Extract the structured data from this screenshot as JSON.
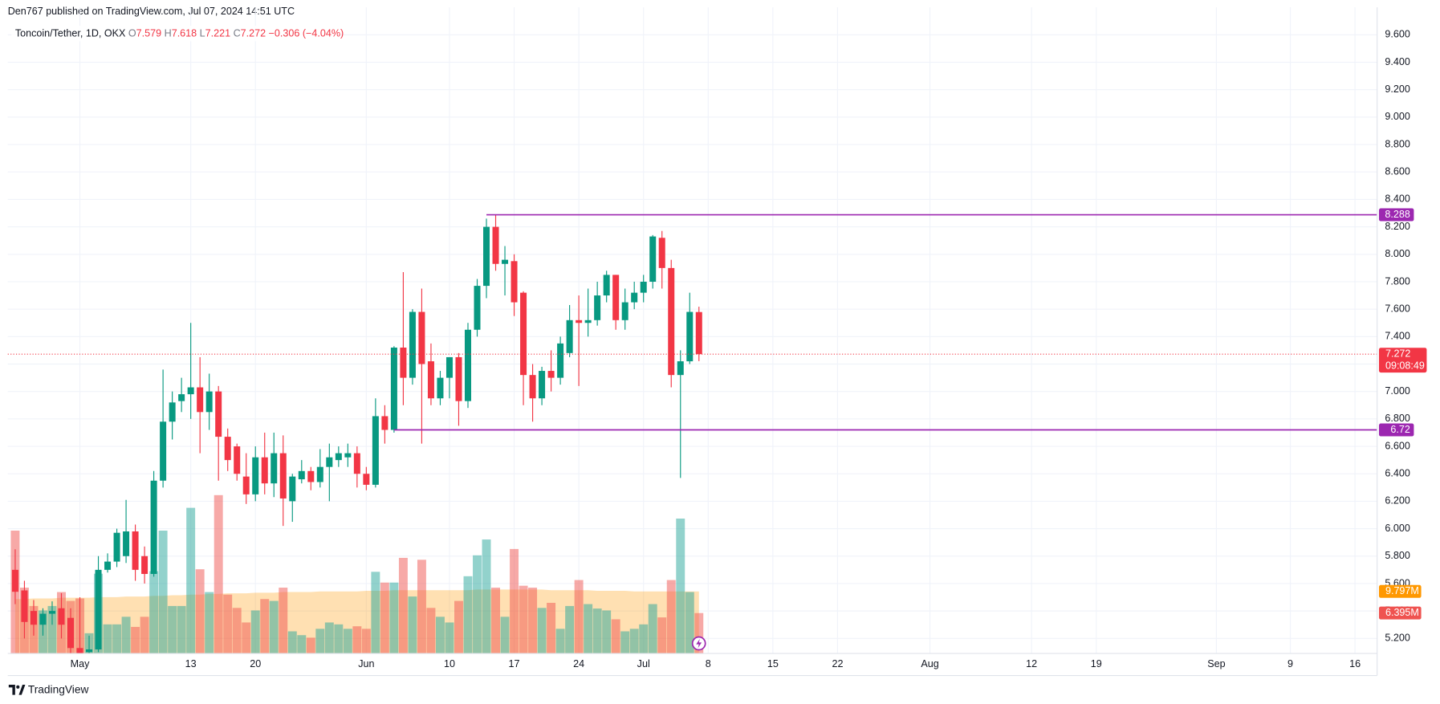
{
  "header": {
    "published": "Den767 published on TradingView.com, Jul 07, 2024 14:51 UTC"
  },
  "chart_data": {
    "type": "candlestick",
    "symbol": "Toncoin/Tether, 1D, OKX",
    "ohlc_labels": [
      "O",
      "H",
      "L",
      "C"
    ],
    "change": "−0.306 (−4.04%)",
    "countdown": "09:08:49",
    "colors": {
      "up": "#089981",
      "down": "#f23645",
      "up_volume": "#26a69a",
      "down_volume": "#ef5350",
      "level": "#9c27b0",
      "volume_ma": "#ff9800",
      "ma_label": "#ff9800",
      "grid": "#f0f3fa"
    },
    "grid": true,
    "x": [
      "2024-04-24",
      "2024-04-25",
      "2024-04-26",
      "2024-04-27",
      "2024-04-28",
      "2024-04-29",
      "2024-04-30",
      "2024-05-01",
      "2024-05-02",
      "2024-05-03",
      "2024-05-04",
      "2024-05-05",
      "2024-05-06",
      "2024-05-07",
      "2024-05-08",
      "2024-05-09",
      "2024-05-10",
      "2024-05-11",
      "2024-05-12",
      "2024-05-13",
      "2024-05-14",
      "2024-05-15",
      "2024-05-16",
      "2024-05-17",
      "2024-05-18",
      "2024-05-19",
      "2024-05-20",
      "2024-05-21",
      "2024-05-22",
      "2024-05-23",
      "2024-05-24",
      "2024-05-25",
      "2024-05-26",
      "2024-05-27",
      "2024-05-28",
      "2024-05-29",
      "2024-05-30",
      "2024-05-31",
      "2024-06-01",
      "2024-06-02",
      "2024-06-03",
      "2024-06-04",
      "2024-06-05",
      "2024-06-06",
      "2024-06-07",
      "2024-06-08",
      "2024-06-09",
      "2024-06-10",
      "2024-06-11",
      "2024-06-12",
      "2024-06-13",
      "2024-06-14",
      "2024-06-15",
      "2024-06-16",
      "2024-06-17",
      "2024-06-18",
      "2024-06-19",
      "2024-06-20",
      "2024-06-21",
      "2024-06-22",
      "2024-06-23",
      "2024-06-24",
      "2024-06-25",
      "2024-06-26",
      "2024-06-27",
      "2024-06-28",
      "2024-06-29",
      "2024-06-30",
      "2024-07-01",
      "2024-07-02",
      "2024-07-03",
      "2024-07-04",
      "2024-07-05",
      "2024-07-06",
      "2024-07-07"
    ],
    "open": [
      5.7,
      5.55,
      5.4,
      5.3,
      5.38,
      5.42,
      5.35,
      5.13,
      5.1,
      5.12,
      5.7,
      5.76,
      5.8,
      5.98,
      5.8,
      5.67,
      6.35,
      6.78,
      6.93,
      6.98,
      7.03,
      6.85,
      7.0,
      6.67,
      6.6,
      6.38,
      6.25,
      6.52,
      6.33,
      6.55,
      6.2,
      6.36,
      6.42,
      6.34,
      6.45,
      6.5,
      6.52,
      6.55,
      6.4,
      6.32,
      6.82,
      6.72,
      7.32,
      7.1,
      7.58,
      7.22,
      6.95,
      7.1,
      7.25,
      6.93,
      7.45,
      7.77,
      8.2,
      7.93,
      7.95,
      7.72,
      7.12,
      6.95,
      7.15,
      7.1,
      7.28,
      7.52,
      7.5,
      7.52,
      7.7,
      7.85,
      7.52,
      7.65,
      7.72,
      7.8,
      8.12,
      7.9,
      7.12,
      7.22,
      7.579
    ],
    "high": [
      5.85,
      5.62,
      5.48,
      5.42,
      5.47,
      5.53,
      5.42,
      5.5,
      5.22,
      5.8,
      5.82,
      6.0,
      6.21,
      6.03,
      5.87,
      6.42,
      7.16,
      7.0,
      7.1,
      7.5,
      7.25,
      7.13,
      7.04,
      6.73,
      6.62,
      6.55,
      6.6,
      6.7,
      6.7,
      6.68,
      6.4,
      6.5,
      6.45,
      6.58,
      6.62,
      6.6,
      6.62,
      6.6,
      6.45,
      6.95,
      6.9,
      7.33,
      7.87,
      7.6,
      7.75,
      7.35,
      7.15,
      7.25,
      7.28,
      7.5,
      7.82,
      8.26,
      8.29,
      8.06,
      8.0,
      7.73,
      7.2,
      7.18,
      7.3,
      7.4,
      7.63,
      7.7,
      7.75,
      7.8,
      7.88,
      7.85,
      7.75,
      7.8,
      7.85,
      8.14,
      8.17,
      7.96,
      7.3,
      7.72,
      7.618
    ],
    "low": [
      5.45,
      5.2,
      5.22,
      5.22,
      5.3,
      5.2,
      5.08,
      5.02,
      5.06,
      5.1,
      5.68,
      5.72,
      5.75,
      5.62,
      5.6,
      5.65,
      6.3,
      6.65,
      6.85,
      6.8,
      6.55,
      6.72,
      6.35,
      6.42,
      6.35,
      6.18,
      6.2,
      6.25,
      6.23,
      6.02,
      6.05,
      6.33,
      6.28,
      6.3,
      6.2,
      6.45,
      6.45,
      6.3,
      6.28,
      6.3,
      6.62,
      6.7,
      6.9,
      7.05,
      6.62,
      6.9,
      6.9,
      6.95,
      6.75,
      6.88,
      7.4,
      7.68,
      7.88,
      7.7,
      7.55,
      6.9,
      6.78,
      6.9,
      7.0,
      7.05,
      7.25,
      7.04,
      7.4,
      7.48,
      7.65,
      7.45,
      7.45,
      7.6,
      7.65,
      7.75,
      7.75,
      7.03,
      6.37,
      7.2,
      7.221
    ],
    "close": [
      5.54,
      5.32,
      5.3,
      5.38,
      5.4,
      5.3,
      5.13,
      5.05,
      5.12,
      5.7,
      5.76,
      5.97,
      5.98,
      5.7,
      5.67,
      6.35,
      6.78,
      6.92,
      6.98,
      7.03,
      6.85,
      7.0,
      6.67,
      6.5,
      6.4,
      6.25,
      6.52,
      6.33,
      6.55,
      6.22,
      6.38,
      6.42,
      6.34,
      6.45,
      6.52,
      6.55,
      6.55,
      6.4,
      6.32,
      6.82,
      6.72,
      7.32,
      7.1,
      7.58,
      7.2,
      6.95,
      7.1,
      7.25,
      6.93,
      7.45,
      7.77,
      8.2,
      7.93,
      7.96,
      7.65,
      7.12,
      6.95,
      7.15,
      7.1,
      7.35,
      7.52,
      7.5,
      7.52,
      7.7,
      7.85,
      7.52,
      7.65,
      7.72,
      7.8,
      8.13,
      7.9,
      7.12,
      7.22,
      7.58,
      7.272
    ],
    "volume": [
      19.4,
      10.4,
      7.5,
      6.8,
      7.5,
      9.7,
      8.3,
      8.7,
      3.2,
      12.6,
      4.6,
      4.6,
      5.8,
      4.2,
      5.8,
      13,
      19.4,
      7.5,
      7.5,
      23,
      13.3,
      9.7,
      25,
      9.3,
      7.2,
      4.9,
      6.8,
      8.6,
      8.3,
      10.4,
      3.5,
      2.9,
      2.5,
      3.9,
      4.9,
      4.6,
      3.9,
      4.3,
      3.9,
      12.9,
      11.2,
      11.2,
      15.1,
      9,
      14.8,
      7.2,
      5.8,
      4.9,
      8.3,
      12.2,
      15.5,
      18,
      10.4,
      5.8,
      16.5,
      10.7,
      10.4,
      7.2,
      8,
      3.9,
      7.5,
      11.6,
      7.8,
      7.1,
      6.8,
      5.4,
      3.5,
      3.9,
      4.6,
      7.8,
      5.7,
      11.6,
      21.3,
      9.7,
      6.395
    ],
    "volume_ma": [
      8.6,
      8.6,
      8.7,
      8.7,
      8.7,
      8.8,
      8.8,
      8.8,
      8.8,
      8.9,
      8.9,
      8.9,
      9.0,
      9.0,
      9.0,
      9.1,
      9.1,
      9.2,
      9.2,
      9.3,
      9.3,
      9.4,
      9.4,
      9.5,
      9.5,
      9.5,
      9.6,
      9.6,
      9.6,
      9.7,
      9.7,
      9.7,
      9.7,
      9.8,
      9.8,
      9.8,
      9.8,
      9.8,
      9.9,
      9.9,
      9.9,
      10.0,
      10.0,
      10.0,
      10.0,
      10.0,
      10.0,
      10.0,
      10.0,
      10.0,
      10.1,
      10.1,
      10.1,
      10.1,
      10.1,
      10.1,
      10.1,
      10.1,
      10.0,
      10.0,
      10.0,
      10.0,
      10.0,
      9.9,
      9.9,
      9.9,
      9.9,
      9.8,
      9.8,
      9.8,
      9.8,
      9.8,
      9.8,
      9.8,
      9.797
    ],
    "volume_labels": [
      {
        "value": 9.797,
        "label": "9.797M"
      },
      {
        "value": 6.395,
        "label": "6.395M"
      }
    ],
    "volume_ylim": [
      0,
      102
    ],
    "xlim": [
      "2024-04-23",
      "2024-09-18"
    ],
    "xticks": [
      {
        "value": "2024-05-01",
        "label": "May"
      },
      {
        "value": "2024-05-13",
        "label": "13"
      },
      {
        "value": "2024-05-20",
        "label": "20"
      },
      {
        "value": "2024-06-01",
        "label": "Jun"
      },
      {
        "value": "2024-06-10",
        "label": "10"
      },
      {
        "value": "2024-06-17",
        "label": "17"
      },
      {
        "value": "2024-06-24",
        "label": "24"
      },
      {
        "value": "2024-07-01",
        "label": "Jul"
      },
      {
        "value": "2024-07-08",
        "label": "8"
      },
      {
        "value": "2024-07-15",
        "label": "15"
      },
      {
        "value": "2024-07-22",
        "label": "22"
      },
      {
        "value": "2024-08-01",
        "label": "Aug"
      },
      {
        "value": "2024-08-12",
        "label": "12"
      },
      {
        "value": "2024-08-19",
        "label": "19"
      },
      {
        "value": "2024-09-01",
        "label": "Sep"
      },
      {
        "value": "2024-09-09",
        "label": "9"
      },
      {
        "value": "2024-09-16",
        "label": "16"
      }
    ],
    "ylim": [
      5.09,
      9.8
    ],
    "yticks": [
      {
        "value": 5.2,
        "label": "5.200"
      },
      {
        "value": 5.4,
        "label": "5.400"
      },
      {
        "value": 5.6,
        "label": "5.600"
      },
      {
        "value": 5.8,
        "label": "5.800"
      },
      {
        "value": 6.0,
        "label": "6.000"
      },
      {
        "value": 6.2,
        "label": "6.200"
      },
      {
        "value": 6.4,
        "label": "6.400"
      },
      {
        "value": 6.6,
        "label": "6.600"
      },
      {
        "value": 6.8,
        "label": "6.800"
      },
      {
        "value": 7.0,
        "label": "7.000"
      },
      {
        "value": 7.2,
        "label": "7.200"
      },
      {
        "value": 7.4,
        "label": "7.400"
      },
      {
        "value": 7.6,
        "label": "7.600"
      },
      {
        "value": 7.8,
        "label": "7.800"
      },
      {
        "value": 8.0,
        "label": "8.000"
      },
      {
        "value": 8.2,
        "label": "8.200"
      },
      {
        "value": 8.4,
        "label": "8.400"
      },
      {
        "value": 8.6,
        "label": "8.600"
      },
      {
        "value": 8.8,
        "label": "8.800"
      },
      {
        "value": 9.0,
        "label": "9.000"
      },
      {
        "value": 9.2,
        "label": "9.200"
      },
      {
        "value": 9.4,
        "label": "9.400"
      },
      {
        "value": 9.6,
        "label": "9.600"
      }
    ],
    "levels": [
      {
        "value": 8.288,
        "start": "2024-06-14"
      },
      {
        "value": 6.72,
        "start": "2024-06-04"
      }
    ]
  },
  "footer": {
    "brand": "TradingView"
  }
}
